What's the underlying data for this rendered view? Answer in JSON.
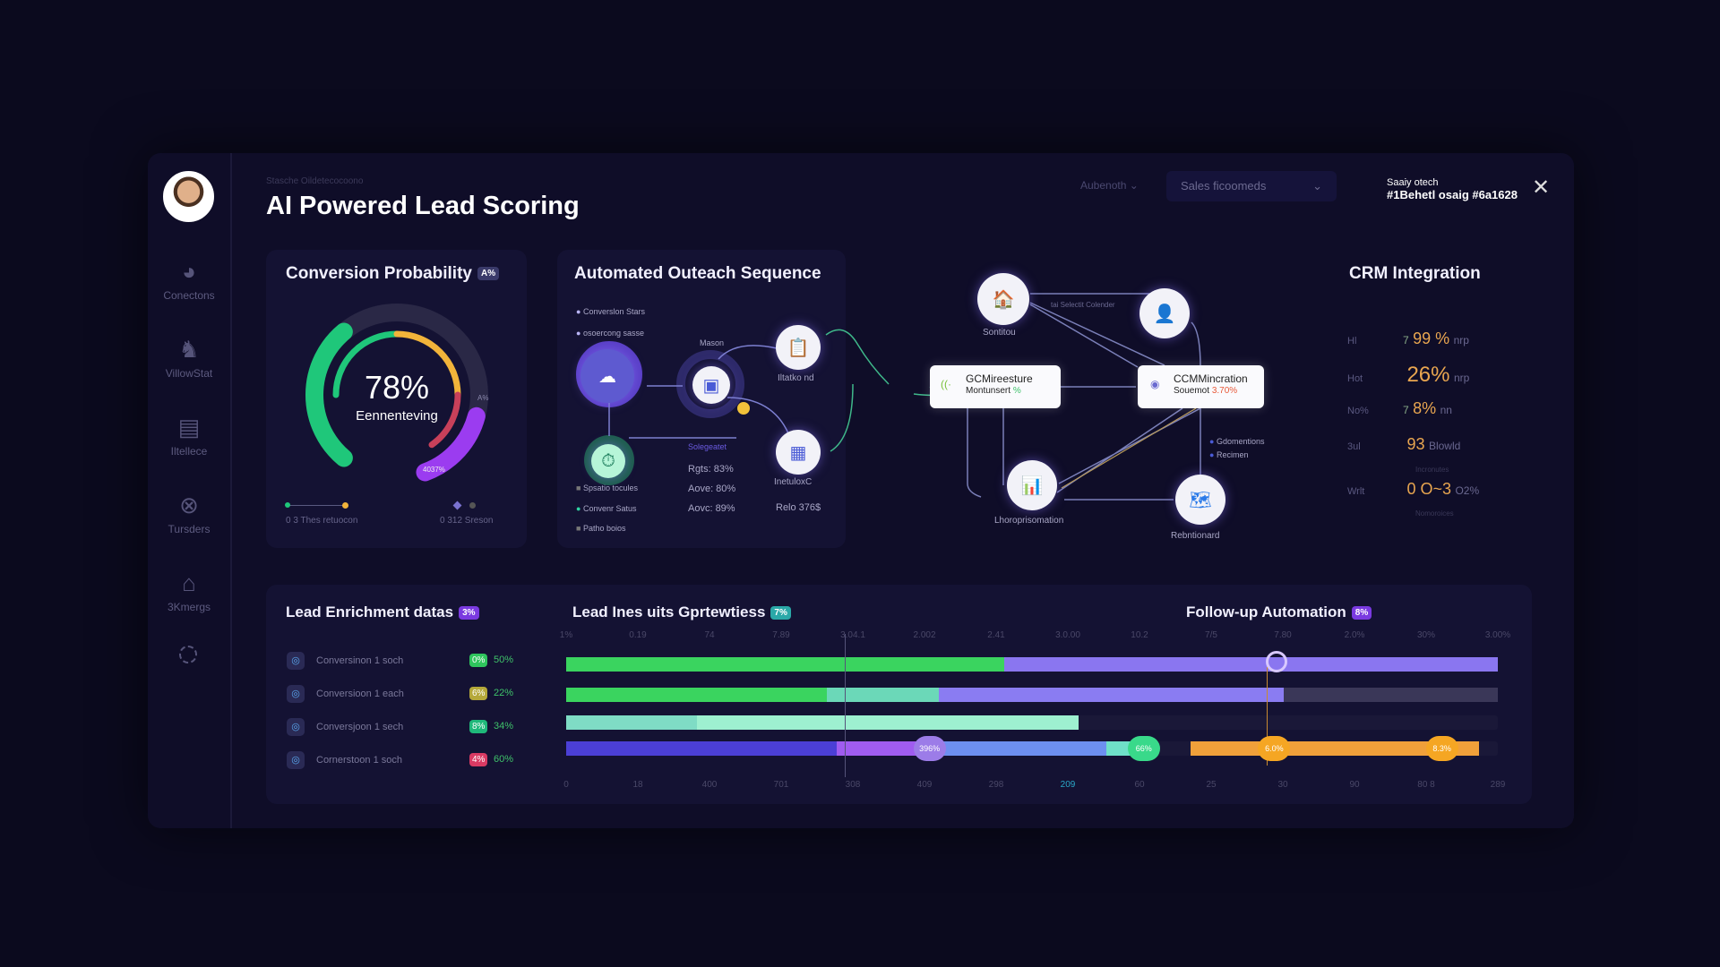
{
  "header": {
    "breadcrumb": "Stasche Oildetecocoono",
    "title": "AI Powered Lead Scoring",
    "filter1": "Aubenoth",
    "filter2": "Sales ficoomeds",
    "status_line1": "Saaiy otech",
    "status_line2": "#1Behetl osaig #6a1628"
  },
  "sidebar": {
    "items": [
      {
        "label": "Conectons",
        "icon": "chart-icon"
      },
      {
        "label": "VillowStat",
        "icon": "person-icon"
      },
      {
        "label": "Iltellece",
        "icon": "calendar-icon"
      },
      {
        "label": "Tursders",
        "icon": "tools-icon"
      },
      {
        "label": "3Kmergs",
        "icon": "home-icon"
      }
    ],
    "refresh_icon": "refresh-icon"
  },
  "conversion": {
    "title": "Conversion Probability",
    "badge": "A%",
    "value": "78%",
    "value_label": "Eennenteving",
    "gauge_label": "A%",
    "arc_label": "4037%",
    "legend_left": "0 3 Thes retuocon",
    "legend_right": "0 312 Sreson",
    "colors": {
      "green": "#1fc77a",
      "yellow": "#f2b43a",
      "red": "#c8405a",
      "purple": "#9b3cf0"
    },
    "progress": 78
  },
  "outreach": {
    "title": "Automated Outeach Sequence",
    "legend": [
      {
        "label": "Converslon Stars",
        "color": "#b9b4f5"
      },
      {
        "label": "osoercong sasse",
        "color": "#b9b4f5"
      },
      {
        "label": "Spsatio tocules",
        "color": "#777"
      },
      {
        "label": "Convenr Satus",
        "color": "#2fd3a2"
      },
      {
        "label": "Patho boios",
        "color": "#777"
      }
    ],
    "nodes": {
      "mason": "Mason",
      "iltatko": "Iltatko nd",
      "segment": "Solegeatet",
      "inetulox": "InetuloxC"
    },
    "stats": [
      "Rgts: 83%",
      "Aove: 80%",
      "Aovc: 89%"
    ],
    "relo": "Relo 376$"
  },
  "network": {
    "nodes": {
      "sontitou": "Sontitou",
      "connector": "tai Selectit Colender",
      "gcm_title": "GCMireesture",
      "gcm_sub": "Montunsert",
      "gcm_pct": "%",
      "ccm_title": "CCMMincration",
      "ccm_sub": "Souemot",
      "ccm_pct": "3.70%",
      "lhoro": "Lhoroprisomation",
      "rebn": "Rebntionard",
      "opt1": "Gdomentions",
      "opt2": "Recimen"
    }
  },
  "crm": {
    "title": "CRM Integration",
    "rows": [
      {
        "label": "Hl",
        "value": "99 %",
        "unit": "nrp",
        "prefix": "7"
      },
      {
        "label": "Hot",
        "value": "26%",
        "unit": "nrp",
        "prefix": ""
      },
      {
        "label": "No%",
        "value": "8%",
        "unit": "nn",
        "prefix": "7"
      },
      {
        "label": "3ul",
        "value": "93",
        "unit": "Blowld",
        "prefix": ""
      },
      {
        "label": "Wrlt",
        "value": "0 O~3",
        "unit": "O2%",
        "prefix": ""
      }
    ],
    "notes": [
      "Incronutes",
      "Nomoroices"
    ]
  },
  "enrichment": {
    "title": "Lead Enrichment datas",
    "badge": "3%",
    "rows": [
      {
        "label": "Conversinon 1 soch",
        "badge": "0%",
        "pct": "50%",
        "color": "#2fc55d"
      },
      {
        "label": "Conversioon 1 each",
        "badge": "6%",
        "pct": "22%",
        "color": "#b5a83a"
      },
      {
        "label": "Conversjoon 1 sech",
        "badge": "8%",
        "pct": "34%",
        "color": "#1fb87a"
      },
      {
        "label": "Cornerstoon 1 soch",
        "badge": "4%",
        "pct": "60%",
        "color": "#d93a63"
      }
    ]
  },
  "timeline": {
    "title": "Lead Ines uits Gprtewtiess",
    "badge": "7%",
    "title2": "Follow-up Automation",
    "badge2": "8%",
    "top_ticks": [
      "1%",
      "0.19",
      "74",
      "7.89",
      "3.04.1",
      "2.002",
      "2.41",
      "3.0.00",
      "10.2",
      "7/5",
      "7.80",
      "2.0%",
      "30%",
      "3.00%"
    ],
    "bottom_ticks": [
      "0",
      "18",
      "400",
      "701",
      "308",
      "409",
      "298",
      "209",
      "60",
      "25",
      "30",
      "90",
      "80 8",
      "289"
    ],
    "rows": [
      {
        "segments": [
          [
            0,
            47,
            "#3ad45f"
          ],
          [
            47,
            100,
            "#8a76f0"
          ]
        ]
      },
      {
        "segments": [
          [
            0,
            28,
            "#3ad45f"
          ],
          [
            28,
            40,
            "#6bd8b8"
          ],
          [
            40,
            77,
            "#8a7cf2"
          ],
          [
            77,
            100,
            "#3a3758"
          ]
        ]
      },
      {
        "segments": [
          [
            0,
            14,
            "#7fdcc5"
          ],
          [
            14,
            55,
            "#9ef0d0"
          ]
        ]
      },
      {
        "segments": [
          [
            0,
            29,
            "#4b3fd6"
          ],
          [
            29,
            40,
            "#a05cf0"
          ],
          [
            40,
            58,
            "#6d8ff0"
          ],
          [
            58,
            63,
            "#6fe0c8"
          ],
          [
            67,
            98,
            "#f0a03a"
          ]
        ]
      }
    ],
    "markers": [
      {
        "label": "396%",
        "pos": 39,
        "row": 3,
        "color": "#9c7ce8"
      },
      {
        "label": "66%",
        "pos": 62,
        "row": 3,
        "color": "#39d98a"
      },
      {
        "label": "6.0%",
        "pos": 76,
        "row": 3,
        "color": "#f5a623"
      },
      {
        "label": "8.3%",
        "pos": 94,
        "row": 3,
        "color": "#f5a623"
      }
    ]
  }
}
